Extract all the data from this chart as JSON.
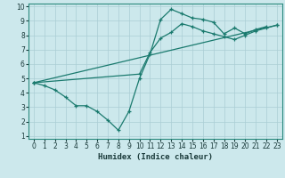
{
  "background_color": "#cce8ec",
  "grid_color": "#aacdd4",
  "line_color": "#1a7a6e",
  "xlabel": "Humidex (Indice chaleur)",
  "xlim": [
    -0.5,
    23.5
  ],
  "ylim": [
    0.8,
    10.2
  ],
  "xticks": [
    0,
    1,
    2,
    3,
    4,
    5,
    6,
    7,
    8,
    9,
    10,
    11,
    12,
    13,
    14,
    15,
    16,
    17,
    18,
    19,
    20,
    21,
    22,
    23
  ],
  "yticks": [
    1,
    2,
    3,
    4,
    5,
    6,
    7,
    8,
    9,
    10
  ],
  "series1_x": [
    0,
    1,
    2,
    3,
    4,
    5,
    6,
    7,
    8,
    9,
    10,
    11,
    12,
    13,
    14,
    15,
    16,
    17,
    18,
    19,
    20,
    21,
    22
  ],
  "series1_y": [
    4.7,
    4.5,
    4.2,
    3.7,
    3.1,
    3.1,
    2.7,
    2.1,
    1.4,
    2.7,
    5.0,
    6.7,
    9.1,
    9.8,
    9.5,
    9.2,
    9.1,
    8.9,
    8.1,
    8.5,
    8.1,
    8.4,
    8.6
  ],
  "series2_x": [
    0,
    23
  ],
  "series2_y": [
    4.7,
    8.7
  ],
  "series3_x": [
    0,
    10,
    11,
    12,
    13,
    14,
    15,
    16,
    17,
    18,
    19,
    20,
    21,
    22,
    23
  ],
  "series3_y": [
    4.7,
    5.3,
    6.8,
    7.8,
    8.2,
    8.8,
    8.6,
    8.3,
    8.1,
    7.9,
    7.7,
    8.0,
    8.3,
    8.5,
    8.7
  ],
  "tick_fontsize": 5.5,
  "label_fontsize": 6.5
}
